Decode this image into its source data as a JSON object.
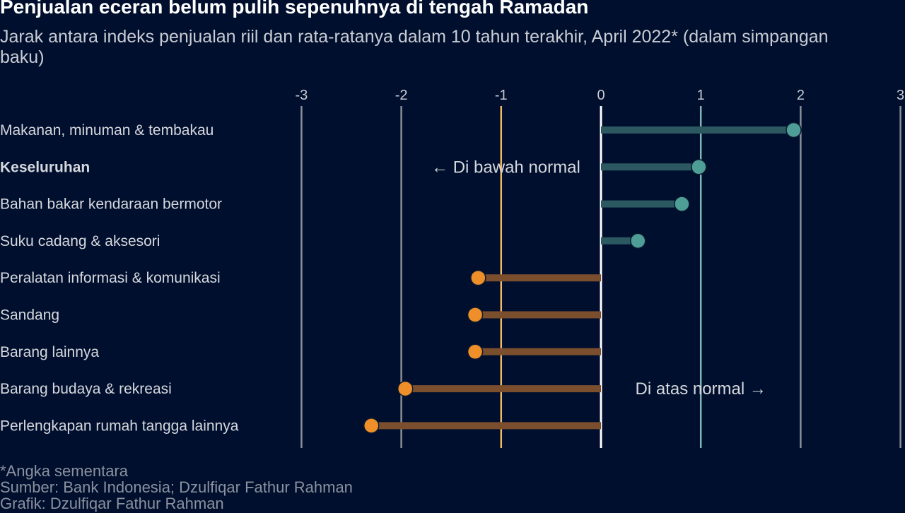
{
  "header": {
    "title": "Penjualan eceran belum pulih sepenuhnya di tengah Ramadan",
    "subtitle": "Jarak antara indeks penjualan riil dan rata-ratanya dalam 10 tahun terakhir, April 2022* (dalam simpangan baku)"
  },
  "footer": {
    "note": "*Angka sementara",
    "source": "Sumber: Bank Indonesia; Dzulfiqar Fathur Rahman",
    "credit": "Grafik: Dzulfiqar Fathur Rahman"
  },
  "chart_data": {
    "type": "lollipop",
    "title": "Penjualan eceran belum pulih sepenuhnya di tengah Ramadan",
    "subtitle": "Jarak antara indeks penjualan riil dan rata-ratanya dalam 10 tahun terakhir, April 2022* (dalam simpangan baku)",
    "xlabel": "",
    "ylabel": "",
    "xlim": [
      -3,
      3
    ],
    "x_ticks": [
      -3,
      -2,
      -1,
      0,
      1,
      2,
      3
    ],
    "x_axis_position": "top",
    "categories": [
      "Makanan, minuman & tembakau",
      "Keseluruhan",
      "Bahan bakar kendaraan bermotor",
      "Suku cadang & aksesori",
      "Peralatan informasi & komunikasi",
      "Sandang",
      "Barang lainnya",
      "Barang budaya & rekreasi",
      "Perlengkapan rumah tangga lainnya"
    ],
    "bold_categories": [
      "Keseluruhan"
    ],
    "values": [
      1.93,
      0.98,
      0.81,
      0.37,
      -1.23,
      -1.26,
      -1.26,
      -1.96,
      -2.3
    ],
    "reference_lines": [
      {
        "x": -1,
        "color": "#f5b867"
      },
      {
        "x": 0,
        "color": "#ffffff"
      },
      {
        "x": 1,
        "color": "#7fb8b3"
      }
    ],
    "annotations": [
      {
        "text": "← Di bawah normal",
        "x": -1,
        "category": "Keseluruhan"
      },
      {
        "text": "Di atas normal →",
        "x": 1,
        "category": "Barang budaya & rekreasi"
      }
    ],
    "colors": {
      "positive_point": "#4e9d96",
      "positive_stem": "#2c5862",
      "negative_point": "#ef8f2a",
      "negative_stem": "#7b4f2e",
      "gridline": "#8a8f99",
      "background": "#000f2d"
    }
  }
}
